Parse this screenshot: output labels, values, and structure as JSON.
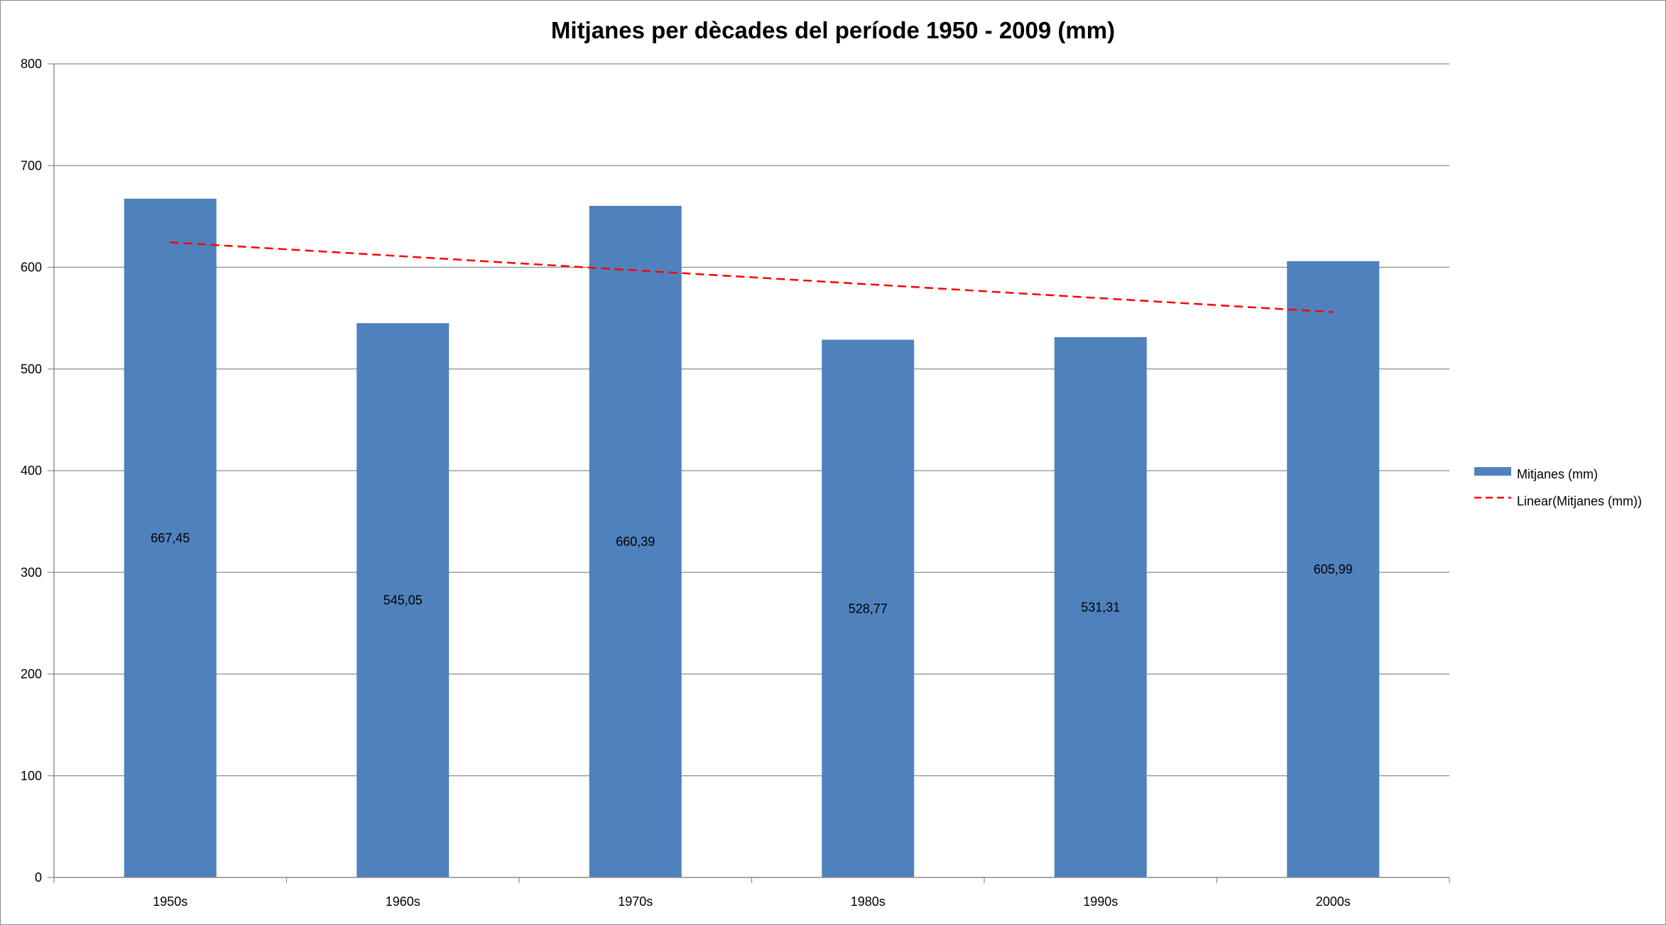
{
  "chart_data": {
    "type": "bar",
    "title": "Mitjanes per dècades del període 1950 - 2009 (mm)",
    "xlabel": "",
    "ylabel": "",
    "categories": [
      "1950s",
      "1960s",
      "1970s",
      "1980s",
      "1990s",
      "2000s"
    ],
    "values": [
      667.45,
      545.05,
      660.39,
      528.77,
      531.31,
      605.99
    ],
    "value_labels": [
      "667,45",
      "545,05",
      "660,39",
      "528,77",
      "531,31",
      "605,99"
    ],
    "ylim": [
      0,
      800
    ],
    "yticks": [
      "0",
      "100",
      "200",
      "300",
      "400",
      "500",
      "600",
      "700",
      "800"
    ],
    "grid": true,
    "series": [
      {
        "name": "Mitjanes (mm)",
        "kind": "bar",
        "color": "#4f81bd",
        "values": [
          667.45,
          545.05,
          660.39,
          528.77,
          531.31,
          605.99
        ]
      },
      {
        "name": "Linear(Mitjanes (mm))",
        "kind": "trendline",
        "style": "dashed",
        "color": "#ff0000",
        "values": [
          624.5,
          610.8,
          597.0,
          583.3,
          569.6,
          555.9
        ]
      }
    ],
    "legend": {
      "position": "right",
      "entries": [
        "Mitjanes (mm)",
        "Linear(Mitjanes (mm))"
      ]
    },
    "colors": {
      "bar": "#4f81bd",
      "trend": "#ff0000",
      "grid": "#8c8c8c",
      "axis": "#8c8c8c"
    }
  }
}
